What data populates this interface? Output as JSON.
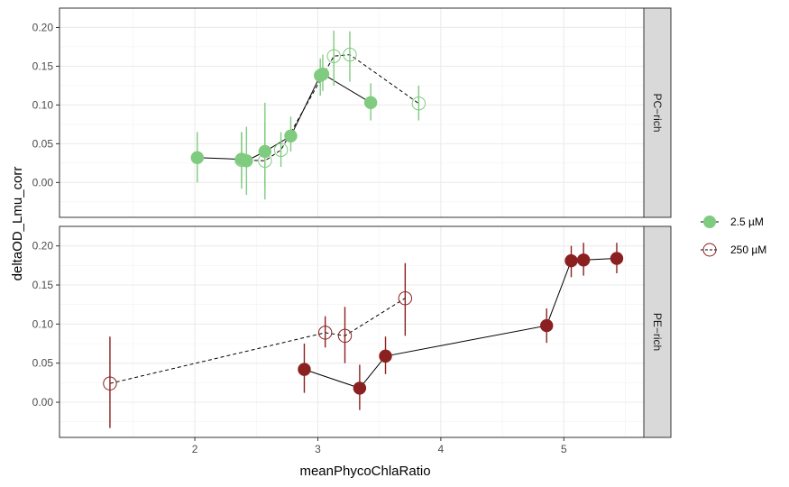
{
  "chart_data": {
    "type": "scatter",
    "title": "",
    "xlabel": "meanPhycoChlaRatio",
    "ylabel": "deltaOD_Lmu_corr",
    "xlim": [
      0.9,
      5.65
    ],
    "x_ticks": [
      2,
      3,
      4,
      5
    ],
    "x_tick_labels": [
      "2",
      "3",
      "4",
      "5"
    ],
    "ylim": [
      -0.045,
      0.225
    ],
    "y_ticks": [
      0.0,
      0.05,
      0.1,
      0.15,
      0.2
    ],
    "y_tick_labels": [
      "0.00",
      "0.05",
      "0.10",
      "0.15",
      "0.20"
    ],
    "grid": true,
    "legend": {
      "position": "right",
      "entries": [
        {
          "label": "2.5 µM",
          "marker": "filled",
          "line": "solid"
        },
        {
          "label": "250 µM",
          "marker": "open",
          "line": "dashed"
        }
      ]
    },
    "panels": [
      {
        "strip": "PC−rich",
        "color": "#7fcb7f",
        "series": [
          {
            "legend_index": 0,
            "points": [
              {
                "x": 2.02,
                "y": 0.032,
                "lo": 0.0,
                "hi": 0.065
              },
              {
                "x": 2.38,
                "y": 0.03,
                "lo": 0.0,
                "hi": 0.065
              },
              {
                "x": 2.42,
                "y": 0.028,
                "lo": -0.016,
                "hi": 0.072
              },
              {
                "x": 2.57,
                "y": 0.04,
                "lo": -0.005,
                "hi": 0.103
              },
              {
                "x": 2.78,
                "y": 0.06,
                "lo": 0.04,
                "hi": 0.085
              },
              {
                "x": 3.02,
                "y": 0.138,
                "lo": 0.112,
                "hi": 0.16
              },
              {
                "x": 3.04,
                "y": 0.14,
                "lo": 0.118,
                "hi": 0.165
              },
              {
                "x": 3.43,
                "y": 0.103,
                "lo": 0.08,
                "hi": 0.128
              }
            ]
          },
          {
            "legend_index": 1,
            "points": [
              {
                "x": 2.38,
                "y": 0.029,
                "lo": -0.008,
                "hi": 0.065
              },
              {
                "x": 2.57,
                "y": 0.028,
                "lo": -0.022,
                "hi": 0.078
              },
              {
                "x": 2.7,
                "y": 0.042,
                "lo": 0.02,
                "hi": 0.065
              },
              {
                "x": 3.13,
                "y": 0.163,
                "lo": 0.125,
                "hi": 0.196
              },
              {
                "x": 3.26,
                "y": 0.165,
                "lo": 0.13,
                "hi": 0.195
              },
              {
                "x": 3.82,
                "y": 0.102,
                "lo": 0.08,
                "hi": 0.125
              }
            ]
          }
        ]
      },
      {
        "strip": "PE−rich",
        "color": "#8b2020",
        "series": [
          {
            "legend_index": 0,
            "points": [
              {
                "x": 2.89,
                "y": 0.042,
                "lo": 0.012,
                "hi": 0.075
              },
              {
                "x": 3.34,
                "y": 0.018,
                "lo": -0.01,
                "hi": 0.048
              },
              {
                "x": 3.55,
                "y": 0.059,
                "lo": 0.036,
                "hi": 0.084
              },
              {
                "x": 4.86,
                "y": 0.098,
                "lo": 0.076,
                "hi": 0.12
              },
              {
                "x": 5.06,
                "y": 0.181,
                "lo": 0.16,
                "hi": 0.2
              },
              {
                "x": 5.16,
                "y": 0.182,
                "lo": 0.162,
                "hi": 0.204
              },
              {
                "x": 5.43,
                "y": 0.184,
                "lo": 0.165,
                "hi": 0.204
              }
            ]
          },
          {
            "legend_index": 1,
            "points": [
              {
                "x": 1.31,
                "y": 0.024,
                "lo": -0.033,
                "hi": 0.084
              },
              {
                "x": 3.06,
                "y": 0.089,
                "lo": 0.07,
                "hi": 0.11
              },
              {
                "x": 3.22,
                "y": 0.085,
                "lo": 0.05,
                "hi": 0.122
              },
              {
                "x": 3.71,
                "y": 0.133,
                "lo": 0.085,
                "hi": 0.178
              }
            ]
          }
        ]
      }
    ]
  }
}
